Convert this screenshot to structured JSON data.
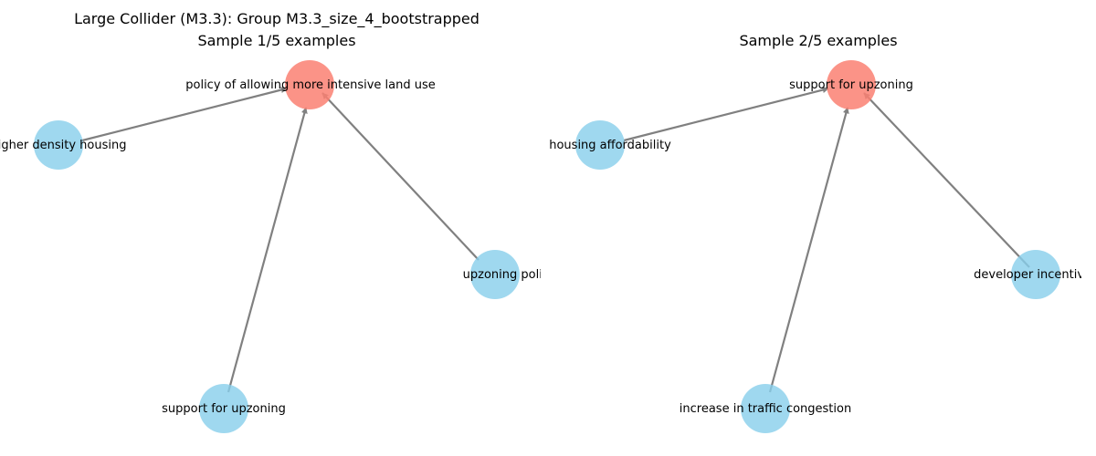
{
  "figure": {
    "suptitle": "Large Collider (M3.3): Group M3.3_size_4_bootstrapped"
  },
  "colors": {
    "collider_node": "#fa8072",
    "parent_node": "#87ceeb",
    "edge": "#808080",
    "background": "#ffffff"
  },
  "panels": [
    {
      "title": "Sample 1/5 examples",
      "collider": {
        "label": "policy of allowing more intensive land use"
      },
      "parents": [
        {
          "label": "higher density housing"
        },
        {
          "label": "support for upzoning"
        },
        {
          "label": "upzoning policies"
        }
      ]
    },
    {
      "title": "Sample 2/5 examples",
      "collider": {
        "label": "support for upzoning"
      },
      "parents": [
        {
          "label": "housing affordability"
        },
        {
          "label": "increase in traffic congestion"
        },
        {
          "label": "developer incentives"
        }
      ]
    }
  ]
}
